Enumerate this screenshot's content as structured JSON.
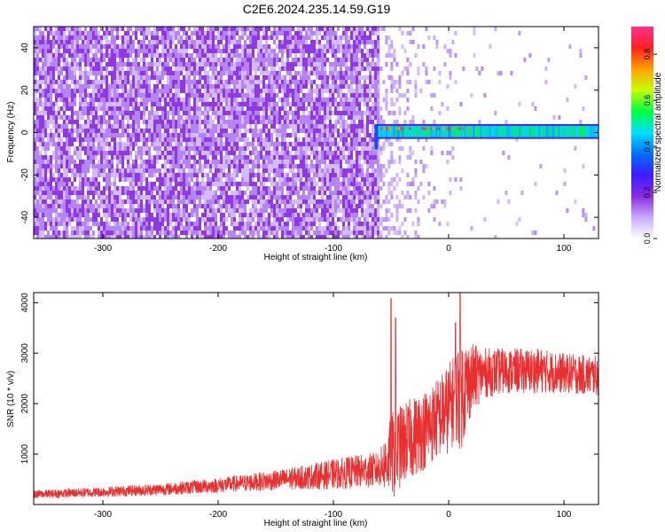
{
  "title": "C2E6.2024.235.14.59.G19",
  "colors": {
    "snr_line": "#e83030",
    "colormap": [
      "#ffffff",
      "#c8aaff",
      "#8a2be2",
      "#3c1cff",
      "#0070ff",
      "#00e0ff",
      "#00ff40",
      "#c8ff00",
      "#ffa000",
      "#ff2020",
      "#ff3090"
    ]
  },
  "chart_data": [
    {
      "type": "heatmap",
      "xlabel": "Height of straight line (km)",
      "ylabel": "Frequency (Hz)",
      "xlim": [
        -360,
        130
      ],
      "ylim": [
        -50,
        50
      ],
      "x_ticks": [
        -300,
        -200,
        -100,
        0,
        100
      ],
      "x_tick_labels": [
        "-300",
        "-200",
        "-100",
        "0",
        "100"
      ],
      "y_ticks": [
        -40,
        -20,
        0,
        20,
        40
      ],
      "y_tick_labels": [
        "-40",
        "-20",
        "0",
        "20",
        "40"
      ],
      "colorbar": {
        "label": "Normalized spectral amplitude",
        "range": [
          0.0,
          0.92
        ],
        "ticks": [
          0.0,
          0.2,
          0.4,
          0.6,
          0.8
        ],
        "tick_labels": [
          "0.0",
          "0.2",
          "0.4",
          "0.6",
          "0.8"
        ]
      },
      "features": {
        "noise_region_x": [
          -360,
          -62
        ],
        "noise_amplitude": [
          0.0,
          0.1
        ],
        "transition_x": -62,
        "signal_band_x": [
          -62,
          130
        ],
        "signal_band_frequency": [
          -2,
          3
        ],
        "signal_band_amplitude": [
          0.1,
          0.9
        ]
      }
    },
    {
      "type": "line",
      "xlabel": "Height of straight line (km)",
      "ylabel": "SNR (10 * v/v)",
      "xlim": [
        -360,
        130
      ],
      "ylim": [
        0,
        4200
      ],
      "x_ticks": [
        -300,
        -200,
        -100,
        0,
        100
      ],
      "x_tick_labels": [
        "-300",
        "-200",
        "-100",
        "0",
        "100"
      ],
      "y_ticks": [
        1000,
        2000,
        3000,
        4000
      ],
      "y_tick_labels": [
        "1000",
        "2000",
        "3000",
        "4000"
      ],
      "series": [
        {
          "x": [
            -360,
            -300,
            -250,
            -200,
            -150,
            -120,
            -100,
            -80,
            -60,
            -52,
            -48,
            -40,
            -30,
            -20,
            -10,
            0,
            5,
            10,
            20,
            30,
            50,
            80,
            100,
            130
          ],
          "mean": [
            200,
            250,
            300,
            380,
            480,
            550,
            600,
            650,
            700,
            900,
            1000,
            1200,
            1350,
            1500,
            1700,
            1900,
            2100,
            2200,
            2500,
            2600,
            2650,
            2650,
            2600,
            2550
          ],
          "spread": [
            80,
            100,
            120,
            150,
            200,
            250,
            300,
            330,
            350,
            700,
            900,
            800,
            800,
            800,
            800,
            900,
            900,
            1200,
            700,
            500,
            450,
            450,
            400,
            400
          ],
          "peaks": [
            [
              -50,
              4080
            ],
            [
              -46,
              3700
            ],
            [
              10,
              4200
            ],
            [
              6,
              3600
            ]
          ]
        }
      ]
    }
  ]
}
